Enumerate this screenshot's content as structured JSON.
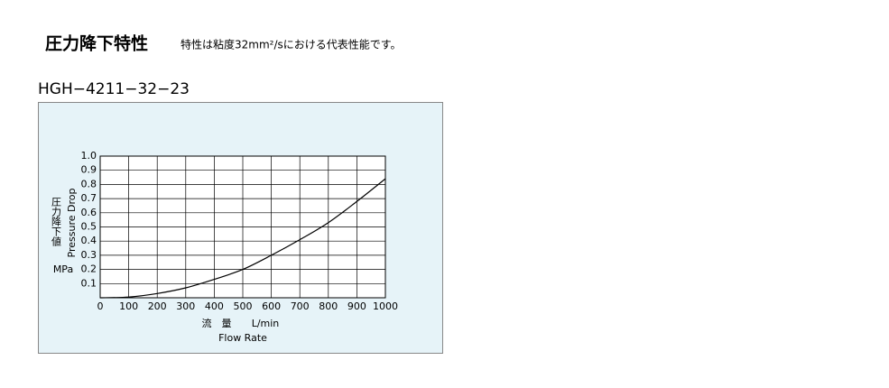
{
  "header": {
    "title": "圧力降下特性",
    "note": "特性は粘度32mm²/sにおける代表性能です。"
  },
  "chart_data": {
    "type": "line",
    "title": "HGH−4211−32−23",
    "ylabel_ja": "圧力降下値",
    "ylabel": "Pressure Drop",
    "yunit": "MPa",
    "xlabel_ja": "流　量",
    "xunit": "L/min",
    "xlabel": "Flow Rate",
    "x": [
      0,
      100,
      200,
      300,
      400,
      500,
      600,
      700,
      800,
      900,
      1000
    ],
    "series": [
      {
        "name": "HGH−4211−32−23",
        "color": "#000000",
        "values": [
          0,
          0.005,
          0.03,
          0.07,
          0.13,
          0.2,
          0.3,
          0.41,
          0.53,
          0.68,
          0.84
        ]
      }
    ],
    "xlim": [
      0,
      1000
    ],
    "ylim": [
      0,
      1
    ],
    "xticks": [
      0,
      100,
      200,
      300,
      400,
      500,
      600,
      700,
      800,
      900,
      1000
    ],
    "yticks": [
      0.1,
      0.2,
      0.3,
      0.4,
      0.5,
      0.6,
      0.7,
      0.8,
      0.9,
      {
        "value": 1,
        "label": "1.0"
      }
    ],
    "grid": true,
    "background": "#e6f3f8"
  }
}
